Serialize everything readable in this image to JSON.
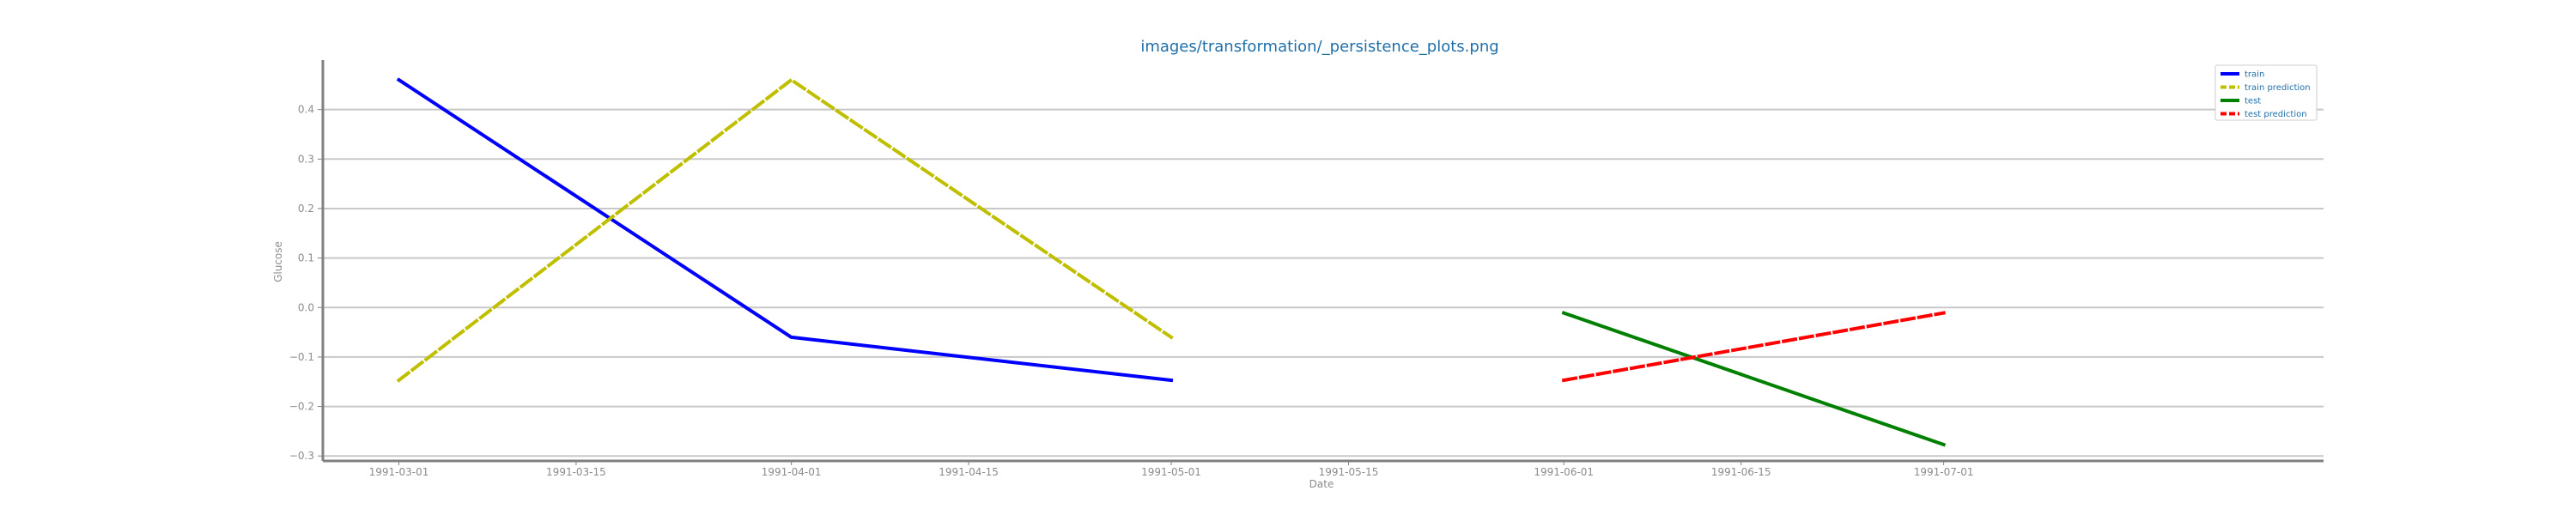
{
  "chart_data": {
    "type": "line",
    "title": "images/transformation/_persistence_plots.png",
    "xlabel": "Date",
    "ylabel": "Glucose",
    "x_ticks": [
      "1991-03-01",
      "1991-03-15",
      "1991-04-01",
      "1991-04-15",
      "1991-05-01",
      "1991-05-15",
      "1991-06-01",
      "1991-06-15",
      "1991-07-01"
    ],
    "y_ticks": [
      "−0.3",
      "−0.2",
      "−0.1",
      "0.0",
      "0.1",
      "0.2",
      "0.3",
      "0.4"
    ],
    "ylim": [
      -0.31,
      0.5
    ],
    "xlim": [
      "1991-02-23",
      "1991-07-31"
    ],
    "grid": "horizontal",
    "legend_position": "top-right",
    "series": [
      {
        "name": "train",
        "color": "#0000ff",
        "style": "solid",
        "x": [
          "1991-03-01",
          "1991-04-01",
          "1991-05-01"
        ],
        "y": [
          0.46,
          -0.06,
          -0.147
        ]
      },
      {
        "name": "train prediction",
        "color": "#bfbf00",
        "style": "dashed",
        "x": [
          "1991-03-01",
          "1991-04-01",
          "1991-05-01"
        ],
        "y": [
          -0.147,
          0.46,
          -0.06
        ]
      },
      {
        "name": "test",
        "color": "#008000",
        "style": "solid",
        "x": [
          "1991-06-01",
          "1991-07-01"
        ],
        "y": [
          -0.011,
          -0.277
        ]
      },
      {
        "name": "test prediction",
        "color": "#ff0000",
        "style": "dashed",
        "x": [
          "1991-06-01",
          "1991-07-01"
        ],
        "y": [
          -0.147,
          -0.011
        ]
      }
    ]
  }
}
